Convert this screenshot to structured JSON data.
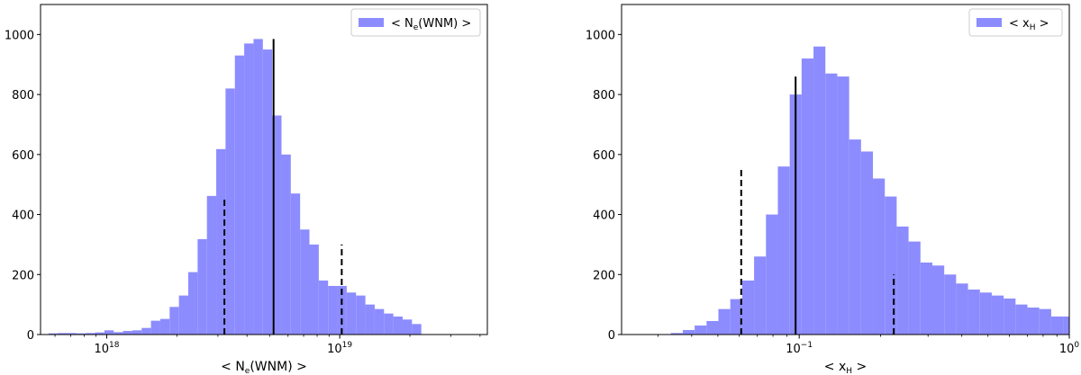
{
  "chart_data": [
    {
      "type": "bar",
      "xscale": "log",
      "xlim": [
        5.2e+17,
        4.3e+19
      ],
      "ylim": [
        0,
        1100
      ],
      "xlabel": "< N_e(WNM) >",
      "xlabel_parts": {
        "pre": "< N",
        "sub": "e",
        "post": "(WNM) >"
      },
      "ylabel": "",
      "grid": false,
      "xticks": [
        {
          "value": 1e+18,
          "base": "10",
          "exp": "18"
        },
        {
          "value": 1e+19,
          "base": "10",
          "exp": "19"
        }
      ],
      "yticks": [
        0,
        200,
        400,
        600,
        800,
        1000
      ],
      "legend": {
        "position": "top-right",
        "label": "< N_e(WNM) >",
        "label_parts": {
          "pre": "< N",
          "sub": "e",
          "post": "(WNM) >"
        }
      },
      "color": "#8c8cff",
      "bins_log10": {
        "start": 17.75,
        "width": 0.04
      },
      "series": [
        {
          "values": [
            4,
            5,
            5,
            4,
            5,
            7,
            14,
            8,
            12,
            14,
            22,
            46,
            52,
            92,
            130,
            208,
            318,
            462,
            618,
            820,
            930,
            970,
            985,
            950,
            730,
            600,
            470,
            350,
            300,
            180,
            162,
            162,
            140,
            130,
            100,
            85,
            70,
            60,
            50,
            35
          ]
        }
      ],
      "lines": [
        {
          "x": 3.2e+18,
          "y": 460,
          "style": "dashed"
        },
        {
          "x": 5.2e+18,
          "y": 985,
          "style": "solid"
        },
        {
          "x": 1.02e+19,
          "y": 300,
          "style": "dashed"
        }
      ]
    },
    {
      "type": "bar",
      "xscale": "log",
      "xlim": [
        0.022,
        1.0
      ],
      "ylim": [
        0,
        1100
      ],
      "xlabel": "< x_H >",
      "xlabel_parts": {
        "pre": "< x",
        "sub": "H",
        "post": " >"
      },
      "ylabel": "",
      "grid": false,
      "xticks": [
        {
          "value": 0.1,
          "base": "10",
          "exp": "−1"
        },
        {
          "value": 1.0,
          "base": "10",
          "exp": "0"
        }
      ],
      "yticks": [
        0,
        200,
        400,
        600,
        800,
        1000
      ],
      "legend": {
        "position": "top-right",
        "label": "< x_H >",
        "label_parts": {
          "pre": "< x",
          "sub": "H",
          "post": " >"
        }
      },
      "color": "#8c8cff",
      "bins_log10": {
        "start": -1.475,
        "width": 0.044
      },
      "series": [
        {
          "values": [
            5,
            15,
            30,
            45,
            85,
            118,
            180,
            260,
            400,
            560,
            800,
            920,
            960,
            870,
            860,
            650,
            610,
            520,
            460,
            360,
            310,
            240,
            230,
            200,
            170,
            150,
            140,
            130,
            120,
            100,
            90,
            85,
            60,
            60,
            55,
            50,
            40
          ]
        }
      ],
      "lines": [
        {
          "x": 0.061,
          "y": 550,
          "style": "dashed"
        },
        {
          "x": 0.097,
          "y": 860,
          "style": "solid"
        },
        {
          "x": 0.224,
          "y": 200,
          "style": "dashed"
        }
      ]
    }
  ]
}
